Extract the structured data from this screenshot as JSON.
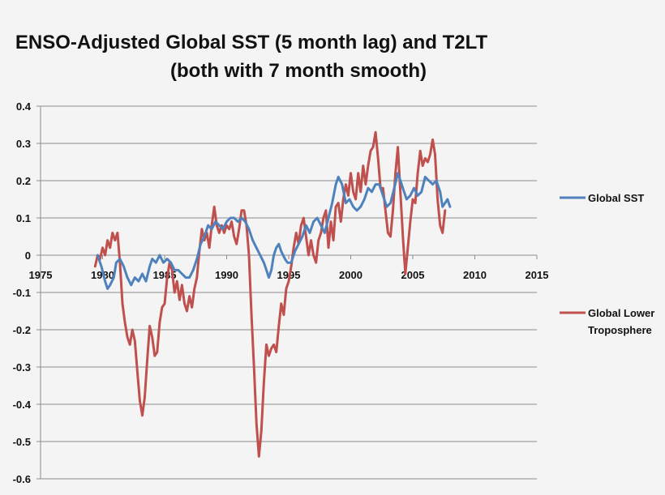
{
  "chart_data": {
    "type": "line",
    "title_lines": [
      "ENSO-Adjusted Global SST (5 month lag) and T2LT",
      "(both with 7 month smooth)"
    ],
    "xlabel": "",
    "ylabel": "",
    "xlim": [
      1975,
      2015
    ],
    "ylim": [
      -0.6,
      0.4
    ],
    "x_ticks": [
      1975,
      1980,
      1985,
      1990,
      1995,
      2000,
      2005,
      2010,
      2015
    ],
    "x_tick_labels": [
      "1975",
      "1980",
      "1985",
      "1990",
      "1995",
      "2000",
      "2005",
      "2010",
      "2015"
    ],
    "y_ticks": [
      0.4,
      0.3,
      0.2,
      0.1,
      0,
      -0.1,
      -0.2,
      -0.3,
      -0.4,
      -0.5,
      -0.6
    ],
    "y_tick_labels": [
      "0.4",
      "0.3",
      "0.2",
      "0.1",
      "0",
      "-0.1",
      "-0.2",
      "-0.3",
      "-0.4",
      "-0.5",
      "-0.6"
    ],
    "grid": true,
    "legend_position": "right",
    "series": [
      {
        "name": "Global SST",
        "color": "#4f81bd",
        "points": [
          [
            1979.6,
            0.0
          ],
          [
            1979.9,
            -0.03
          ],
          [
            1980.2,
            -0.07
          ],
          [
            1980.4,
            -0.09
          ],
          [
            1980.6,
            -0.08
          ],
          [
            1980.9,
            -0.06
          ],
          [
            1981.1,
            -0.02
          ],
          [
            1981.4,
            -0.01
          ],
          [
            1981.7,
            -0.03
          ],
          [
            1982.0,
            -0.06
          ],
          [
            1982.3,
            -0.08
          ],
          [
            1982.6,
            -0.06
          ],
          [
            1982.9,
            -0.07
          ],
          [
            1983.2,
            -0.05
          ],
          [
            1983.5,
            -0.07
          ],
          [
            1983.8,
            -0.03
          ],
          [
            1984.0,
            -0.01
          ],
          [
            1984.3,
            -0.02
          ],
          [
            1984.6,
            0.0
          ],
          [
            1984.9,
            -0.02
          ],
          [
            1985.2,
            -0.01
          ],
          [
            1985.5,
            -0.02
          ],
          [
            1985.8,
            -0.04
          ],
          [
            1986.1,
            -0.04
          ],
          [
            1986.4,
            -0.05
          ],
          [
            1986.7,
            -0.06
          ],
          [
            1987.0,
            -0.06
          ],
          [
            1987.3,
            -0.04
          ],
          [
            1987.6,
            -0.01
          ],
          [
            1987.9,
            0.03
          ],
          [
            1988.2,
            0.05
          ],
          [
            1988.5,
            0.08
          ],
          [
            1988.8,
            0.07
          ],
          [
            1989.1,
            0.09
          ],
          [
            1989.4,
            0.08
          ],
          [
            1989.7,
            0.07
          ],
          [
            1990.0,
            0.09
          ],
          [
            1990.3,
            0.1
          ],
          [
            1990.6,
            0.1
          ],
          [
            1990.9,
            0.09
          ],
          [
            1991.2,
            0.1
          ],
          [
            1991.5,
            0.09
          ],
          [
            1991.8,
            0.07
          ],
          [
            1992.1,
            0.04
          ],
          [
            1992.4,
            0.02
          ],
          [
            1992.7,
            0.0
          ],
          [
            1993.0,
            -0.02
          ],
          [
            1993.2,
            -0.04
          ],
          [
            1993.4,
            -0.06
          ],
          [
            1993.6,
            -0.04
          ],
          [
            1993.8,
            0.0
          ],
          [
            1994.0,
            0.02
          ],
          [
            1994.2,
            0.03
          ],
          [
            1994.4,
            0.01
          ],
          [
            1994.7,
            -0.01
          ],
          [
            1994.9,
            -0.02
          ],
          [
            1995.2,
            -0.02
          ],
          [
            1995.5,
            0.01
          ],
          [
            1995.8,
            0.03
          ],
          [
            1996.1,
            0.05
          ],
          [
            1996.4,
            0.08
          ],
          [
            1996.7,
            0.06
          ],
          [
            1997.0,
            0.09
          ],
          [
            1997.3,
            0.1
          ],
          [
            1997.6,
            0.08
          ],
          [
            1997.9,
            0.06
          ],
          [
            1998.2,
            0.1
          ],
          [
            1998.5,
            0.14
          ],
          [
            1998.8,
            0.19
          ],
          [
            1999.0,
            0.21
          ],
          [
            1999.3,
            0.19
          ],
          [
            1999.6,
            0.14
          ],
          [
            1999.9,
            0.15
          ],
          [
            2000.2,
            0.13
          ],
          [
            2000.5,
            0.12
          ],
          [
            2000.8,
            0.13
          ],
          [
            2001.1,
            0.15
          ],
          [
            2001.4,
            0.18
          ],
          [
            2001.7,
            0.17
          ],
          [
            2002.0,
            0.19
          ],
          [
            2002.3,
            0.19
          ],
          [
            2002.6,
            0.16
          ],
          [
            2002.9,
            0.13
          ],
          [
            2003.2,
            0.14
          ],
          [
            2003.5,
            0.18
          ],
          [
            2003.8,
            0.22
          ],
          [
            2004.0,
            0.2
          ],
          [
            2004.3,
            0.17
          ],
          [
            2004.5,
            0.15
          ],
          [
            2004.8,
            0.16
          ],
          [
            2005.1,
            0.18
          ],
          [
            2005.4,
            0.16
          ],
          [
            2005.7,
            0.17
          ],
          [
            2006.0,
            0.21
          ],
          [
            2006.3,
            0.2
          ],
          [
            2006.6,
            0.19
          ],
          [
            2006.9,
            0.2
          ],
          [
            2007.2,
            0.17
          ],
          [
            2007.4,
            0.13
          ],
          [
            2007.6,
            0.14
          ],
          [
            2007.8,
            0.15
          ],
          [
            2008.0,
            0.13
          ]
        ]
      },
      {
        "name": "Global Lower Troposphere",
        "color": "#c0504d",
        "points": [
          [
            1979.4,
            -0.03
          ],
          [
            1979.6,
            0.0
          ],
          [
            1979.8,
            -0.01
          ],
          [
            1980.0,
            0.02
          ],
          [
            1980.2,
            0.0
          ],
          [
            1980.4,
            0.04
          ],
          [
            1980.6,
            0.02
          ],
          [
            1980.8,
            0.06
          ],
          [
            1981.0,
            0.04
          ],
          [
            1981.2,
            0.06
          ],
          [
            1981.4,
            -0.02
          ],
          [
            1981.6,
            -0.13
          ],
          [
            1981.8,
            -0.18
          ],
          [
            1982.0,
            -0.22
          ],
          [
            1982.2,
            -0.24
          ],
          [
            1982.4,
            -0.2
          ],
          [
            1982.6,
            -0.23
          ],
          [
            1982.8,
            -0.31
          ],
          [
            1983.0,
            -0.39
          ],
          [
            1983.2,
            -0.43
          ],
          [
            1983.4,
            -0.38
          ],
          [
            1983.6,
            -0.28
          ],
          [
            1983.8,
            -0.19
          ],
          [
            1984.0,
            -0.22
          ],
          [
            1984.2,
            -0.27
          ],
          [
            1984.4,
            -0.26
          ],
          [
            1984.6,
            -0.18
          ],
          [
            1984.8,
            -0.14
          ],
          [
            1985.0,
            -0.13
          ],
          [
            1985.2,
            -0.06
          ],
          [
            1985.4,
            -0.02
          ],
          [
            1985.6,
            -0.04
          ],
          [
            1985.8,
            -0.1
          ],
          [
            1986.0,
            -0.07
          ],
          [
            1986.2,
            -0.12
          ],
          [
            1986.4,
            -0.08
          ],
          [
            1986.6,
            -0.13
          ],
          [
            1986.8,
            -0.15
          ],
          [
            1987.0,
            -0.11
          ],
          [
            1987.2,
            -0.14
          ],
          [
            1987.4,
            -0.09
          ],
          [
            1987.6,
            -0.06
          ],
          [
            1987.8,
            0.01
          ],
          [
            1988.0,
            0.07
          ],
          [
            1988.2,
            0.04
          ],
          [
            1988.4,
            0.06
          ],
          [
            1988.6,
            0.02
          ],
          [
            1988.8,
            0.08
          ],
          [
            1989.0,
            0.13
          ],
          [
            1989.2,
            0.08
          ],
          [
            1989.4,
            0.06
          ],
          [
            1989.6,
            0.08
          ],
          [
            1989.8,
            0.06
          ],
          [
            1990.0,
            0.08
          ],
          [
            1990.2,
            0.07
          ],
          [
            1990.4,
            0.09
          ],
          [
            1990.6,
            0.05
          ],
          [
            1990.8,
            0.03
          ],
          [
            1991.0,
            0.07
          ],
          [
            1991.2,
            0.12
          ],
          [
            1991.4,
            0.12
          ],
          [
            1991.6,
            0.08
          ],
          [
            1991.8,
            0.0
          ],
          [
            1992.0,
            -0.16
          ],
          [
            1992.2,
            -0.3
          ],
          [
            1992.4,
            -0.45
          ],
          [
            1992.6,
            -0.54
          ],
          [
            1992.8,
            -0.47
          ],
          [
            1993.0,
            -0.34
          ],
          [
            1993.2,
            -0.24
          ],
          [
            1993.4,
            -0.27
          ],
          [
            1993.6,
            -0.25
          ],
          [
            1993.8,
            -0.24
          ],
          [
            1994.0,
            -0.26
          ],
          [
            1994.2,
            -0.19
          ],
          [
            1994.4,
            -0.13
          ],
          [
            1994.6,
            -0.16
          ],
          [
            1994.8,
            -0.09
          ],
          [
            1995.0,
            -0.07
          ],
          [
            1995.2,
            -0.03
          ],
          [
            1995.4,
            0.02
          ],
          [
            1995.6,
            0.06
          ],
          [
            1995.8,
            0.03
          ],
          [
            1996.0,
            0.08
          ],
          [
            1996.2,
            0.1
          ],
          [
            1996.4,
            0.05
          ],
          [
            1996.6,
            0.0
          ],
          [
            1996.8,
            0.04
          ],
          [
            1997.0,
            0.0
          ],
          [
            1997.2,
            -0.02
          ],
          [
            1997.4,
            0.04
          ],
          [
            1997.6,
            0.06
          ],
          [
            1997.8,
            0.1
          ],
          [
            1998.0,
            0.12
          ],
          [
            1998.2,
            0.02
          ],
          [
            1998.4,
            0.09
          ],
          [
            1998.6,
            0.04
          ],
          [
            1998.8,
            0.13
          ],
          [
            1999.0,
            0.14
          ],
          [
            1999.2,
            0.09
          ],
          [
            1999.4,
            0.15
          ],
          [
            1999.6,
            0.19
          ],
          [
            1999.8,
            0.16
          ],
          [
            2000.0,
            0.22
          ],
          [
            2000.2,
            0.17
          ],
          [
            2000.4,
            0.15
          ],
          [
            2000.6,
            0.22
          ],
          [
            2000.8,
            0.17
          ],
          [
            2001.0,
            0.24
          ],
          [
            2001.2,
            0.19
          ],
          [
            2001.4,
            0.24
          ],
          [
            2001.6,
            0.28
          ],
          [
            2001.8,
            0.29
          ],
          [
            2002.0,
            0.33
          ],
          [
            2002.2,
            0.26
          ],
          [
            2002.4,
            0.18
          ],
          [
            2002.6,
            0.18
          ],
          [
            2002.8,
            0.12
          ],
          [
            2003.0,
            0.06
          ],
          [
            2003.2,
            0.05
          ],
          [
            2003.4,
            0.12
          ],
          [
            2003.6,
            0.22
          ],
          [
            2003.8,
            0.29
          ],
          [
            2004.0,
            0.17
          ],
          [
            2004.2,
            0.05
          ],
          [
            2004.4,
            -0.05
          ],
          [
            2004.6,
            0.02
          ],
          [
            2004.8,
            0.09
          ],
          [
            2005.0,
            0.15
          ],
          [
            2005.2,
            0.14
          ],
          [
            2005.4,
            0.22
          ],
          [
            2005.6,
            0.28
          ],
          [
            2005.8,
            0.24
          ],
          [
            2006.0,
            0.26
          ],
          [
            2006.2,
            0.25
          ],
          [
            2006.4,
            0.27
          ],
          [
            2006.6,
            0.31
          ],
          [
            2006.8,
            0.27
          ],
          [
            2007.0,
            0.15
          ],
          [
            2007.2,
            0.08
          ],
          [
            2007.4,
            0.06
          ],
          [
            2007.6,
            0.12
          ]
        ]
      }
    ]
  }
}
